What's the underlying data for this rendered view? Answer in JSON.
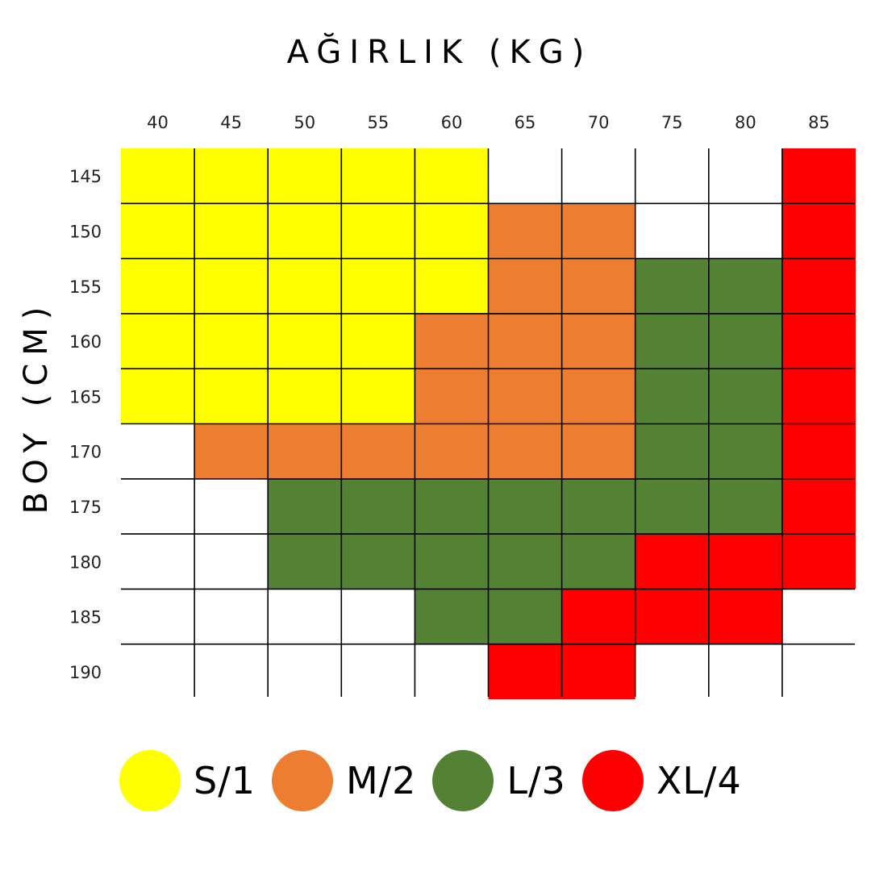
{
  "chart_data": {
    "type": "heatmap",
    "x_title": "AĞIRLIK (KG)",
    "y_title": "BOY (CM)",
    "x_categories": [
      "40",
      "45",
      "50",
      "55",
      "60",
      "65",
      "70",
      "75",
      "80",
      "85"
    ],
    "y_categories": [
      "145",
      "150",
      "155",
      "160",
      "165",
      "170",
      "175",
      "180",
      "185",
      "190"
    ],
    "colors": {
      "S": "#FFFF00",
      "M": "#ED7D31",
      "L": "#548235",
      "XL": "#FF0000",
      "none": "#FFFFFF"
    },
    "legend": [
      {
        "key": "S",
        "label": "S/1"
      },
      {
        "key": "M",
        "label": "M/2"
      },
      {
        "key": "L",
        "label": "L/3"
      },
      {
        "key": "XL",
        "label": "XL/4"
      }
    ],
    "cells": [
      [
        "S",
        "S",
        "S",
        "S",
        "S",
        "",
        "",
        "",
        "",
        "XL"
      ],
      [
        "S",
        "S",
        "S",
        "S",
        "S",
        "M",
        "M",
        "",
        "",
        "XL"
      ],
      [
        "S",
        "S",
        "S",
        "S",
        "S",
        "M",
        "M",
        "L",
        "L",
        "XL"
      ],
      [
        "S",
        "S",
        "S",
        "S",
        "M",
        "M",
        "M",
        "L",
        "L",
        "XL"
      ],
      [
        "S",
        "S",
        "S",
        "S",
        "M",
        "M",
        "M",
        "L",
        "L",
        "XL"
      ],
      [
        "",
        "M",
        "M",
        "M",
        "M",
        "M",
        "M",
        "L",
        "L",
        "XL"
      ],
      [
        "",
        "",
        "L",
        "L",
        "L",
        "L",
        "L",
        "L",
        "L",
        "XL"
      ],
      [
        "",
        "",
        "L",
        "L",
        "L",
        "L",
        "L",
        "XL",
        "XL",
        "XL"
      ],
      [
        "",
        "",
        "",
        "",
        "L",
        "L",
        "XL",
        "XL",
        "XL",
        ""
      ],
      [
        "",
        "",
        "",
        "",
        "",
        "XL",
        "XL",
        "",
        "",
        ""
      ]
    ]
  }
}
